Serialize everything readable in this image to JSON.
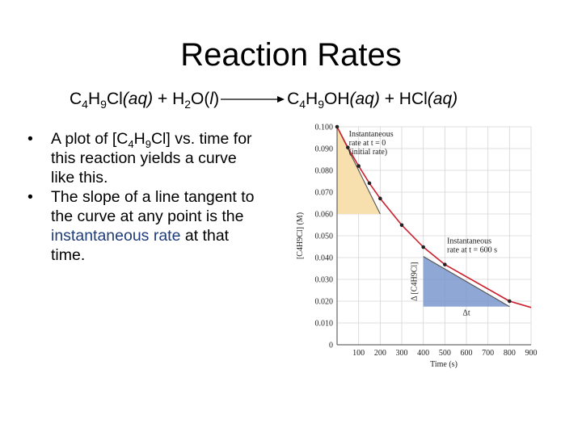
{
  "title": "Reaction Rates",
  "equation": {
    "r1": "C",
    "r1_s1": "4",
    "r1_h": "H",
    "r1_s2": "9",
    "r1_cl": "Cl",
    "r1_p1": "(",
    "r1_phase": "aq",
    "r1_p2": ")",
    "plus1": " + ",
    "r2": "H",
    "r2_s1": "2",
    "r2_o": "O",
    "r2_p1": "(",
    "r2_phase": "l",
    "r2_p2": ")",
    "p1": "C",
    "p1_s1": "4",
    "p1_h": "H",
    "p1_s2": "9",
    "p1_oh": "OH",
    "p1_p1": "(",
    "p1_phase": "aq",
    "p1_p2": ")",
    "plus2": " + ",
    "p2": "HCl",
    "p2_p1": "(",
    "p2_phase": "aq",
    "p2_p2": ")"
  },
  "bullets": [
    {
      "dot": "•",
      "a": "A plot of [C",
      "s1": "4",
      "b": "H",
      "s2": "9",
      "c": "Cl] vs. time for this reaction yields a curve like this."
    },
    {
      "dot": "•",
      "a": "The slope of a line tangent to the curve at any point is the ",
      "highlight": "instantaneous rate",
      "b": " at that time."
    }
  ],
  "colors": {
    "curve": "#cc1f2e",
    "tangent": "#555555",
    "initial_triangle": "#f7dfae",
    "t600_triangle": "#7a98cc",
    "highlight_text": "#1f3c7a"
  },
  "chart_data": {
    "type": "line",
    "title": "",
    "xlabel": "Time (s)",
    "ylabel": "[C4H9Cl] (M)",
    "xlim": [
      0,
      900
    ],
    "ylim": [
      0,
      0.1
    ],
    "xticks": [
      "0",
      "100",
      "200",
      "300",
      "400",
      "500",
      "600",
      "700",
      "800",
      "900"
    ],
    "yticks": [
      "0",
      "0.010",
      "0.020",
      "0.030",
      "0.040",
      "0.050",
      "0.060",
      "0.070",
      "0.080",
      "0.090",
      "0.100"
    ],
    "grid": true,
    "series": [
      {
        "points": [
          {
            "x": 0,
            "y": 0.1
          },
          {
            "x": 50,
            "y": 0.0905
          },
          {
            "x": 100,
            "y": 0.082
          },
          {
            "x": 150,
            "y": 0.0741
          },
          {
            "x": 200,
            "y": 0.0671
          },
          {
            "x": 300,
            "y": 0.0549
          },
          {
            "x": 400,
            "y": 0.0448
          },
          {
            "x": 500,
            "y": 0.0368
          },
          {
            "x": 800,
            "y": 0.02
          }
        ],
        "curve_end": {
          "x": 900,
          "y": 0.0171
        }
      }
    ],
    "tangents": [
      {
        "from": {
          "x": 0,
          "y": 0.1
        },
        "to": {
          "x": 200,
          "y": 0.06
        },
        "fill_triangle": true
      },
      {
        "from": {
          "x": 400,
          "y": 0.0405
        },
        "to": {
          "x": 800,
          "y": 0.0175
        },
        "fill_triangle": true
      }
    ],
    "annotations": [
      {
        "lines": [
          "Instantaneous",
          "rate at t = 0",
          "(initial rate)"
        ]
      },
      {
        "lines": [
          "Instantaneous",
          "rate at t = 600 s"
        ]
      },
      {
        "text": "Δ [C4H9Cl]"
      },
      {
        "text": "Δt"
      }
    ]
  }
}
